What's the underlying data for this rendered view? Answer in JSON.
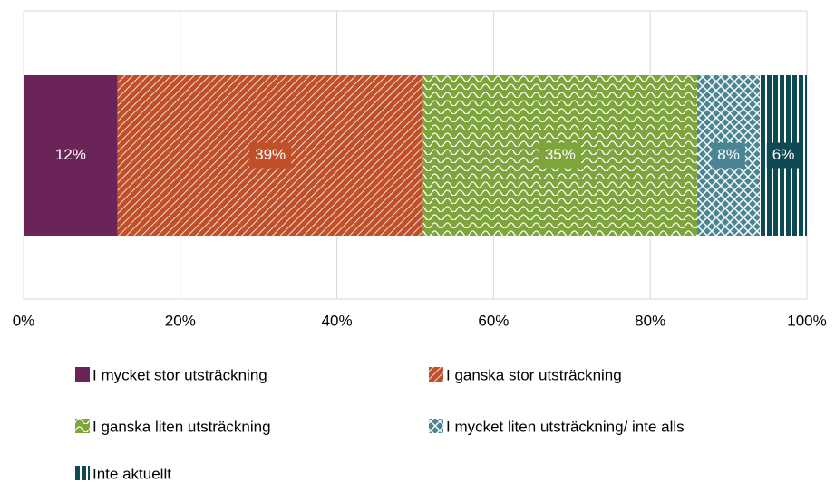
{
  "chart_data": {
    "type": "stacked_barh",
    "categories": [
      null
    ],
    "series": [
      {
        "name": "I mycket stor utsträckning",
        "color": "#6b2458",
        "pattern": "solid",
        "values": [
          12
        ],
        "value_labels": [
          "12%"
        ]
      },
      {
        "name": "I ganska stor utsträckning",
        "color": "#c0502a",
        "pattern": "diagonal",
        "values": [
          39
        ],
        "value_labels": [
          "39%"
        ]
      },
      {
        "name": "I ganska liten utsträckning",
        "color": "#7ea53c",
        "pattern": "wave",
        "values": [
          35
        ],
        "value_labels": [
          "35%"
        ]
      },
      {
        "name": "I mycket liten utsträckning/ inte alls",
        "color": "#4a8594",
        "pattern": "crosshatch",
        "values": [
          8
        ],
        "value_labels": [
          "8%"
        ]
      },
      {
        "name": "Inte aktuellt",
        "color": "#0f4a54",
        "pattern": "vertical",
        "values": [
          6
        ],
        "value_labels": [
          "6%"
        ]
      }
    ],
    "xlim": [
      0,
      100
    ],
    "xticks": [
      {
        "value": 0,
        "label": "0%"
      },
      {
        "value": 20,
        "label": "20%"
      },
      {
        "value": 40,
        "label": "40%"
      },
      {
        "value": 60,
        "label": "60%"
      },
      {
        "value": 80,
        "label": "80%"
      },
      {
        "value": 100,
        "label": "100%"
      }
    ],
    "grid": true
  }
}
